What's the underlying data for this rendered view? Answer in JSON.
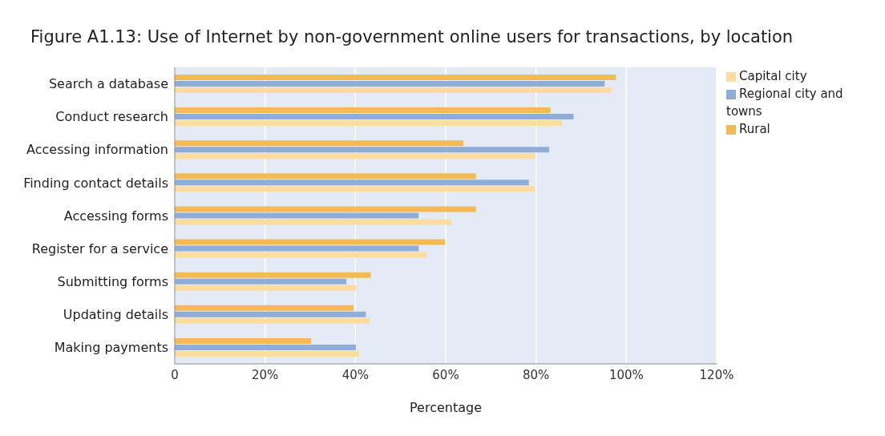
{
  "chart_data": {
    "type": "bar",
    "orientation": "horizontal",
    "title": "Figure A1.13: Use of Internet by non-government online users for transactions, by location",
    "xlabel": "Percentage",
    "categories": [
      "Search a database",
      "Conduct research",
      "Accessing information",
      "Finding contact details",
      "Accessing forms",
      "Register for a service",
      "Submitting forms",
      "Updating details",
      "Making payments"
    ],
    "series": [
      {
        "name": "Rural",
        "color": "#f5b955",
        "values": [
          97.7,
          83.2,
          63.9,
          66.7,
          66.7,
          59.9,
          43.4,
          39.6,
          30.2
        ]
      },
      {
        "name": "Regional city and towns",
        "color": "#8fadd6",
        "values": [
          95.2,
          88.3,
          82.9,
          78.4,
          54,
          54,
          38,
          42.3,
          40.1
        ]
      },
      {
        "name": "Capital city",
        "color": "#fddca0",
        "values": [
          96.8,
          85.7,
          79.8,
          79.8,
          61.3,
          55.7,
          40.1,
          43.2,
          40.8
        ]
      }
    ],
    "xlim": [
      0,
      120
    ],
    "xticks": [
      0,
      {
        "value": 20,
        "label": "20%"
      },
      {
        "value": 40,
        "label": "40%"
      },
      {
        "value": 60,
        "label": "60%"
      },
      {
        "value": 80,
        "label": "80%"
      },
      {
        "value": 100,
        "label": "100%"
      },
      {
        "value": 120,
        "label": "120%"
      }
    ],
    "grid": "x",
    "legend": "top right"
  }
}
